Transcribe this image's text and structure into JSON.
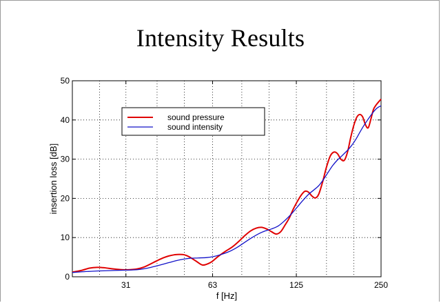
{
  "page": {
    "title": "Intensity Results"
  },
  "chart_data": {
    "type": "line",
    "title": "Intensity Results",
    "xlabel": "f [Hz]",
    "ylabel": "insertion loss [dB]",
    "xscale": "log",
    "xlim": [
      20,
      250
    ],
    "ylim": [
      0,
      50
    ],
    "x_ticks": [
      31,
      63,
      125,
      250
    ],
    "x_tick_labels": [
      "31",
      "63",
      "125",
      "250"
    ],
    "y_ticks": [
      0,
      10,
      20,
      30,
      40,
      50
    ],
    "y_tick_labels": [
      "0",
      "10",
      "20",
      "30",
      "40",
      "50"
    ],
    "x_minor_gridlines": [
      25,
      40,
      50,
      80,
      100,
      160,
      200
    ],
    "grid": true,
    "legend_position": "upper-left",
    "series": [
      {
        "name": "sound pressure",
        "color": "#e00000",
        "x": [
          20,
          21.5,
          23,
          24.5,
          26,
          28,
          30,
          32,
          34,
          36,
          38,
          40,
          42,
          44,
          46,
          48,
          50,
          52,
          55,
          58,
          61,
          63,
          66,
          70,
          74,
          78,
          82,
          86,
          90,
          94,
          98,
          102,
          106,
          110,
          114,
          118,
          122,
          126,
          130,
          134,
          138,
          142,
          146,
          150,
          155,
          160,
          165,
          170,
          175,
          180,
          185,
          190,
          195,
          200,
          205,
          210,
          215,
          220,
          225,
          230,
          235,
          240,
          245,
          250
        ],
        "y": [
          1.2,
          1.6,
          2.2,
          2.4,
          2.3,
          2.0,
          1.8,
          1.8,
          2.0,
          2.5,
          3.3,
          4.1,
          4.8,
          5.3,
          5.6,
          5.7,
          5.6,
          5.1,
          4.0,
          3.0,
          3.4,
          4.0,
          5.2,
          6.5,
          7.6,
          9.0,
          10.5,
          11.7,
          12.4,
          12.6,
          12.2,
          11.5,
          10.9,
          11.5,
          13.2,
          15.0,
          17.3,
          19.2,
          20.8,
          21.8,
          21.6,
          20.6,
          20.1,
          21.0,
          24.2,
          28.0,
          30.8,
          31.8,
          31.4,
          30.0,
          29.7,
          31.8,
          35.5,
          38.6,
          40.7,
          41.4,
          40.8,
          38.8,
          38.0,
          40.2,
          42.7,
          43.8,
          44.6,
          45.3
        ]
      },
      {
        "name": "sound intensity",
        "color": "#1010c8",
        "x": [
          20,
          22,
          25,
          28,
          31,
          34,
          37,
          40,
          44,
          48,
          52,
          56,
          60,
          63,
          67,
          72,
          77,
          82,
          87,
          92,
          97,
          102,
          108,
          114,
          120,
          126,
          132,
          138,
          144,
          150,
          156,
          162,
          168,
          174,
          180,
          186,
          192,
          198,
          204,
          210,
          216,
          222,
          228,
          234,
          240,
          245,
          250
        ],
        "y": [
          1.1,
          1.3,
          1.5,
          1.6,
          1.7,
          1.8,
          2.2,
          2.8,
          3.6,
          4.3,
          4.7,
          4.8,
          4.9,
          5.1,
          5.6,
          6.4,
          7.5,
          8.8,
          10.0,
          11.0,
          11.7,
          12.2,
          13.0,
          14.4,
          16.0,
          17.8,
          19.5,
          21.0,
          22.1,
          23.2,
          24.8,
          26.6,
          28.3,
          29.6,
          30.6,
          31.6,
          32.6,
          33.8,
          35.2,
          36.8,
          38.3,
          39.6,
          40.8,
          41.9,
          42.8,
          43.3,
          43.6
        ]
      }
    ]
  }
}
